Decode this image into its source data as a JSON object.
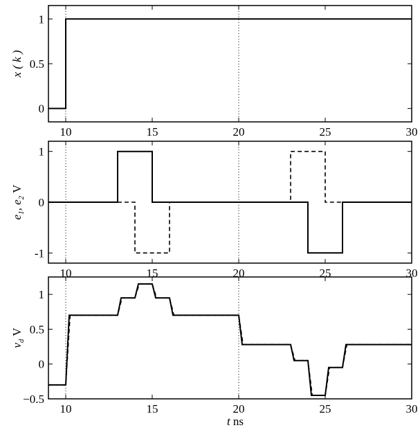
{
  "chart_data": [
    {
      "type": "line",
      "ylabel": "x ( k )",
      "xlim": [
        9,
        30
      ],
      "ylim": [
        -0.15,
        1.15
      ],
      "xticks": [
        10,
        15,
        20,
        25,
        30
      ],
      "xtick_labels": [
        "10",
        "15",
        "20",
        "25",
        "30"
      ],
      "yticks": [
        0,
        0.5,
        1
      ],
      "ytick_labels": [
        "0",
        "0.5",
        "1"
      ],
      "vlines": [
        10,
        20
      ],
      "series": [
        {
          "style": "solid",
          "x": [
            9,
            10,
            10,
            30
          ],
          "y": [
            0,
            0,
            1,
            1
          ]
        }
      ]
    },
    {
      "type": "line",
      "ylabel": "e₁, e₂  V",
      "xlim": [
        9,
        30
      ],
      "ylim": [
        -1.2,
        1.2
      ],
      "xticks": [
        10,
        15,
        20,
        25,
        30
      ],
      "xtick_labels": [
        "10",
        "15",
        "20",
        "25",
        "30"
      ],
      "yticks": [
        -1,
        0,
        1
      ],
      "ytick_labels": [
        "-1",
        "0",
        "1"
      ],
      "vlines": [
        10,
        20
      ],
      "series": [
        {
          "style": "solid",
          "x": [
            9,
            13,
            13,
            15,
            15,
            24,
            24,
            26,
            26,
            30
          ],
          "y": [
            0,
            0,
            1,
            1,
            0,
            0,
            -1,
            -1,
            0,
            0
          ]
        },
        {
          "style": "dashed",
          "x": [
            9,
            14,
            14,
            16,
            16,
            23,
            23,
            25,
            25,
            30
          ],
          "y": [
            0,
            0,
            -1,
            -1,
            0,
            0,
            1,
            1,
            0,
            0
          ]
        }
      ]
    },
    {
      "type": "line",
      "ylabel": "v_d  V",
      "xlabel": "t  ns",
      "xlim": [
        9,
        30
      ],
      "ylim": [
        -0.5,
        1.25
      ],
      "xticks": [
        10,
        15,
        20,
        25,
        30
      ],
      "xtick_labels": [
        "10",
        "15",
        "20",
        "25",
        "30"
      ],
      "yticks": [
        -0.5,
        0,
        0.5,
        1
      ],
      "ytick_labels": [
        "−0.5",
        "0",
        "0.5",
        "1"
      ],
      "vlines": [
        10,
        20
      ],
      "series": [
        {
          "style": "solid",
          "x": [
            9,
            10,
            10.2,
            13,
            13.2,
            14,
            14.2,
            15,
            15.2,
            16,
            16.2,
            20,
            20.2,
            23,
            23.2,
            24,
            24.2,
            25,
            25.2,
            26,
            26.2,
            30
          ],
          "y": [
            -0.3,
            -0.3,
            0.7,
            0.7,
            0.95,
            0.95,
            1.15,
            1.15,
            0.95,
            0.95,
            0.7,
            0.7,
            0.28,
            0.28,
            0.05,
            0.05,
            -0.45,
            -0.45,
            -0.05,
            -0.05,
            0.28,
            0.28
          ]
        },
        {
          "style": "dashed",
          "x": [
            9,
            10,
            10.25,
            13,
            13.25,
            14,
            14.25,
            15,
            15.25,
            16,
            16.25,
            20,
            20.25,
            23,
            23.25,
            24,
            24.25,
            25,
            25.25,
            26,
            26.25,
            30
          ],
          "y": [
            -0.3,
            -0.3,
            0.7,
            0.7,
            0.95,
            0.95,
            1.15,
            1.15,
            0.95,
            0.95,
            0.7,
            0.7,
            0.28,
            0.28,
            0.05,
            0.05,
            -0.45,
            -0.45,
            -0.05,
            -0.05,
            0.28,
            0.28
          ]
        }
      ]
    }
  ]
}
